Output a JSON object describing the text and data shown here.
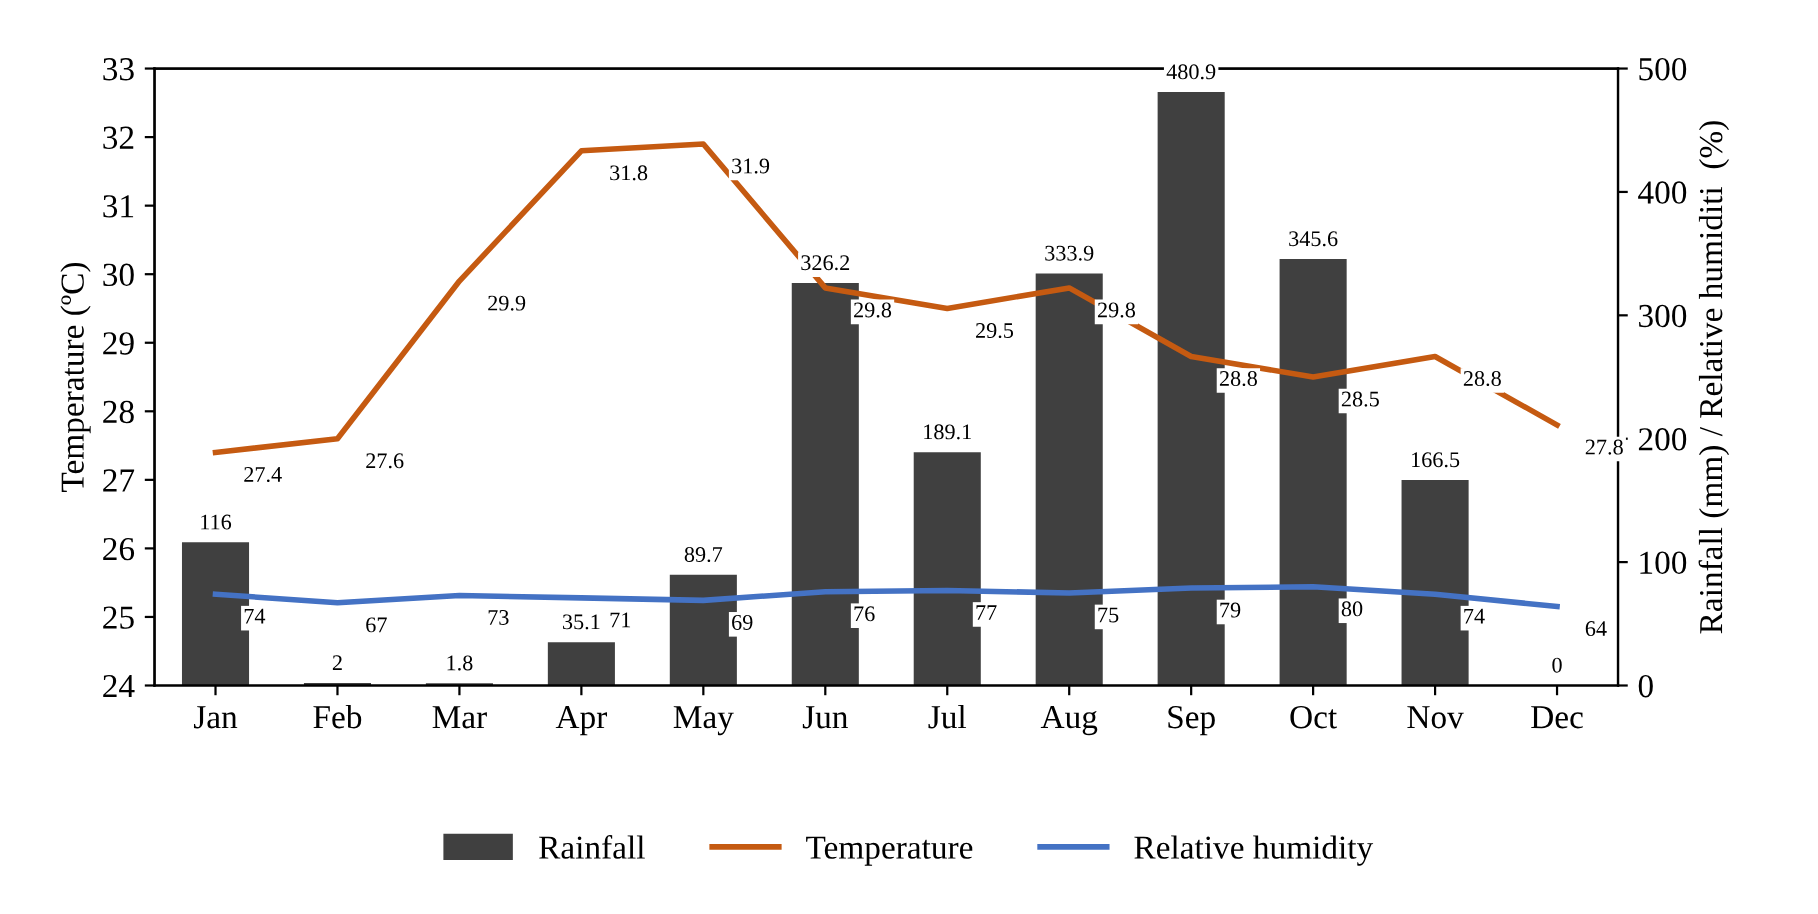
{
  "chart_data": {
    "type": "bar",
    "categories": [
      "Jan",
      "Feb",
      "Mar",
      "Apr",
      "May",
      "Jun",
      "Jul",
      "Aug",
      "Sep",
      "Oct",
      "Nov",
      "Dec"
    ],
    "ylabel": "Temperature (ºC)",
    "y2label": "Rainfall (mm) / Relative humiditi  (%)",
    "ylim": [
      24,
      33
    ],
    "yticks": [
      24,
      25,
      26,
      27,
      28,
      29,
      30,
      31,
      32,
      33
    ],
    "y2lim": [
      0,
      500
    ],
    "y2ticks": [
      0,
      100,
      200,
      300,
      400,
      500
    ],
    "series": [
      {
        "name": "Rainfall",
        "axis": "y2",
        "color": "#404040",
        "values": [
          116,
          2,
          1.8,
          35.1,
          89.7,
          326.2,
          189.1,
          333.9,
          480.9,
          345.6,
          166.5,
          0
        ]
      },
      {
        "name": "Temperature",
        "type": "line",
        "axis": "y",
        "color": "#c55a11",
        "values": [
          27.4,
          27.6,
          29.9,
          31.8,
          31.9,
          29.8,
          29.5,
          29.8,
          28.8,
          28.5,
          28.8,
          27.8
        ]
      },
      {
        "name": "Relative humidity",
        "type": "line",
        "axis": "y2",
        "color": "#4472c4",
        "values": [
          74,
          67,
          73,
          71,
          69,
          76,
          77,
          75,
          79,
          80,
          74,
          64
        ]
      }
    ],
    "data_labels": true,
    "legend": "bottom",
    "grid": false,
    "marker": "none",
    "line_style": "solid"
  }
}
